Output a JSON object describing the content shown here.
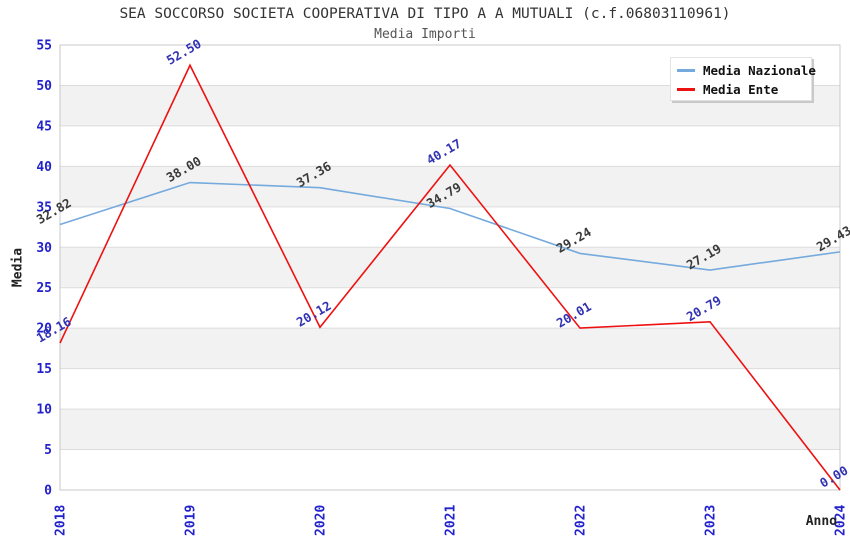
{
  "title": "SEA SOCCORSO SOCIETA COOPERATIVA DI TIPO A A MUTUALI (c.f.06803110961)",
  "subtitle": "Media Importi",
  "chart_data": {
    "type": "line",
    "title": "SEA SOCCORSO SOCIETA COOPERATIVA DI TIPO A A MUTUALI (c.f.06803110961)",
    "subtitle": "Media Importi",
    "xlabel": "Anno",
    "ylabel": "Media",
    "categories": [
      "2018",
      "2019",
      "2020",
      "2021",
      "2022",
      "2023",
      "2024"
    ],
    "series": [
      {
        "name": "Media Nazionale",
        "color": "#74aadd",
        "label_color": "#3a3a3a",
        "values": [
          32.82,
          38.0,
          37.36,
          34.79,
          29.24,
          27.19,
          29.43
        ]
      },
      {
        "name": "Media Ente",
        "color": "#ee1111",
        "label_color": "#3232b4",
        "values": [
          18.16,
          52.5,
          20.12,
          40.17,
          20.01,
          20.79,
          0.0
        ]
      }
    ],
    "ylim": [
      0,
      55
    ],
    "ytick_step": 5,
    "yticks": [
      0,
      5,
      10,
      15,
      20,
      25,
      30,
      35,
      40,
      45,
      50,
      55
    ],
    "tick_color": "#2222cc",
    "band_colors": [
      "#ffffff",
      "#f2f2f2"
    ],
    "gridline_color": "#dcdcdc",
    "border_color": "#c8c8c8",
    "grid": true,
    "legend_position": "top-right",
    "label_format_decimals": 2
  }
}
